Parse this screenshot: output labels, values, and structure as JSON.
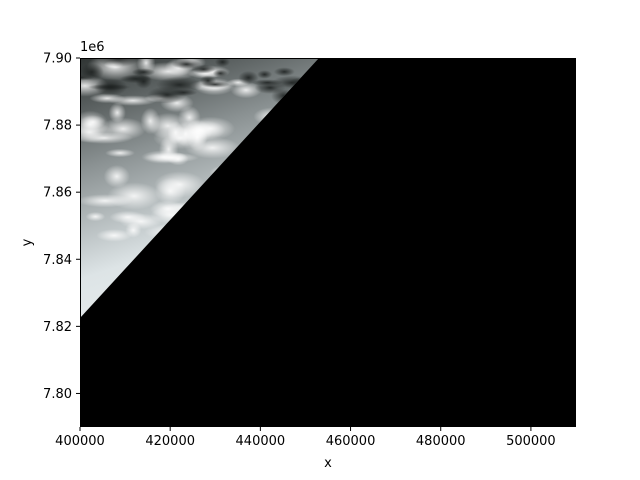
{
  "chart_data": {
    "type": "image",
    "xlabel": "x",
    "ylabel": "y",
    "y_offset_label": "1e6",
    "xlim": [
      400000,
      510000
    ],
    "ylim": [
      7790000,
      7900000
    ],
    "x_ticks": [
      {
        "value": 400000,
        "label": "400000"
      },
      {
        "value": 420000,
        "label": "420000"
      },
      {
        "value": 440000,
        "label": "440000"
      },
      {
        "value": 460000,
        "label": "460000"
      },
      {
        "value": 480000,
        "label": "480000"
      },
      {
        "value": 500000,
        "label": "500000"
      }
    ],
    "y_ticks": [
      {
        "value": 7800000,
        "label": "7.80"
      },
      {
        "value": 7820000,
        "label": "7.82"
      },
      {
        "value": 7840000,
        "label": "7.84"
      },
      {
        "value": 7860000,
        "label": "7.86"
      },
      {
        "value": 7880000,
        "label": "7.88"
      },
      {
        "value": 7900000,
        "label": "7.90"
      }
    ],
    "image_footprint": [
      [
        400000,
        7900000
      ],
      [
        453000,
        7900000
      ],
      [
        400000,
        7822500
      ]
    ],
    "nodata_color": "#000000",
    "grid": false
  }
}
